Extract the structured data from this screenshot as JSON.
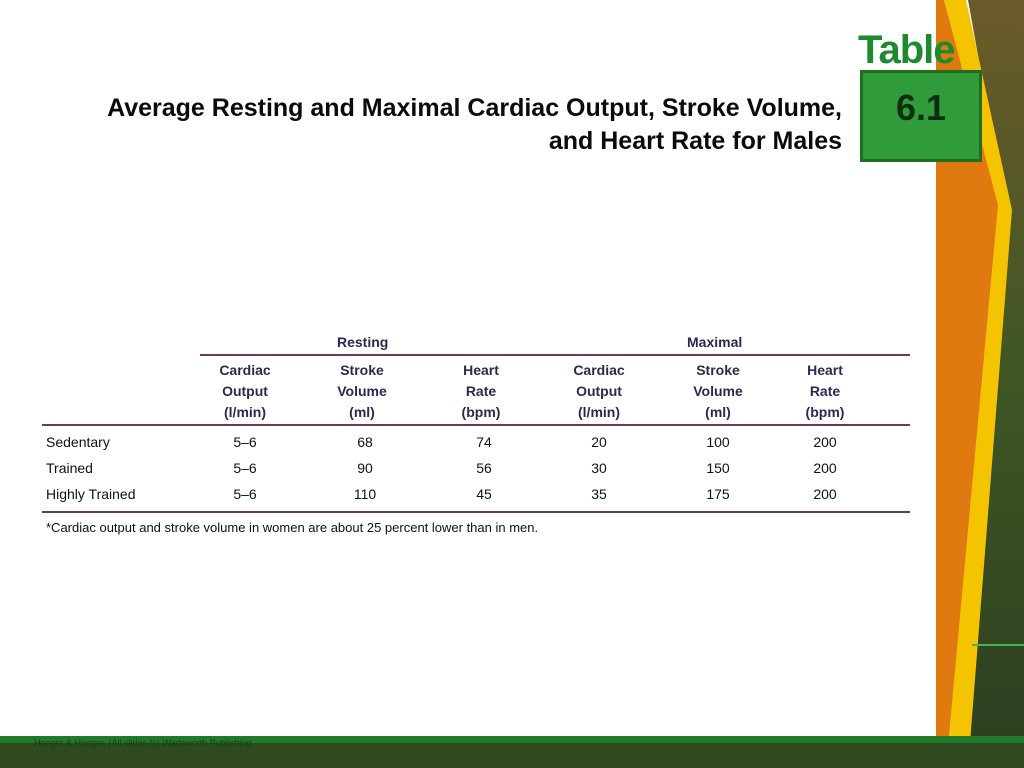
{
  "title": "Average Resting and Maximal Cardiac Output, Stroke Volume, and Heart Rate for Males",
  "badge": {
    "label": "Table",
    "number": "6.1"
  },
  "table": {
    "groups": [
      "Resting",
      "Maximal"
    ],
    "columns": [
      [
        "Cardiac",
        "Output",
        "(l/min)"
      ],
      [
        "Stroke",
        "Volume",
        "(ml)"
      ],
      [
        "Heart",
        "Rate",
        "(bpm)"
      ],
      [
        "Cardiac",
        "Output",
        "(l/min)"
      ],
      [
        "Stroke",
        "Volume",
        "(ml)"
      ],
      [
        "Heart",
        "Rate",
        "(bpm)"
      ]
    ],
    "rows": [
      {
        "label": "Sedentary",
        "values": [
          "5–6",
          "68",
          "74",
          "20",
          "100",
          "200"
        ]
      },
      {
        "label": "Trained",
        "values": [
          "5–6",
          "90",
          "56",
          "30",
          "150",
          "200"
        ]
      },
      {
        "label": "Highly Trained",
        "values": [
          "5–6",
          "110",
          "45",
          "35",
          "175",
          "200"
        ]
      }
    ],
    "note": "*Cardiac output and stroke volume in women are about 25 percent lower than in men."
  },
  "footer": "Hoeger & Hoeger, (All slides (c) Wadsworth Publishing",
  "colors": {
    "band_yellow": "#f5c400",
    "band_orange": "#e07a10",
    "grass": "#2f4a1e",
    "badge_green": "#2f9b3a"
  }
}
